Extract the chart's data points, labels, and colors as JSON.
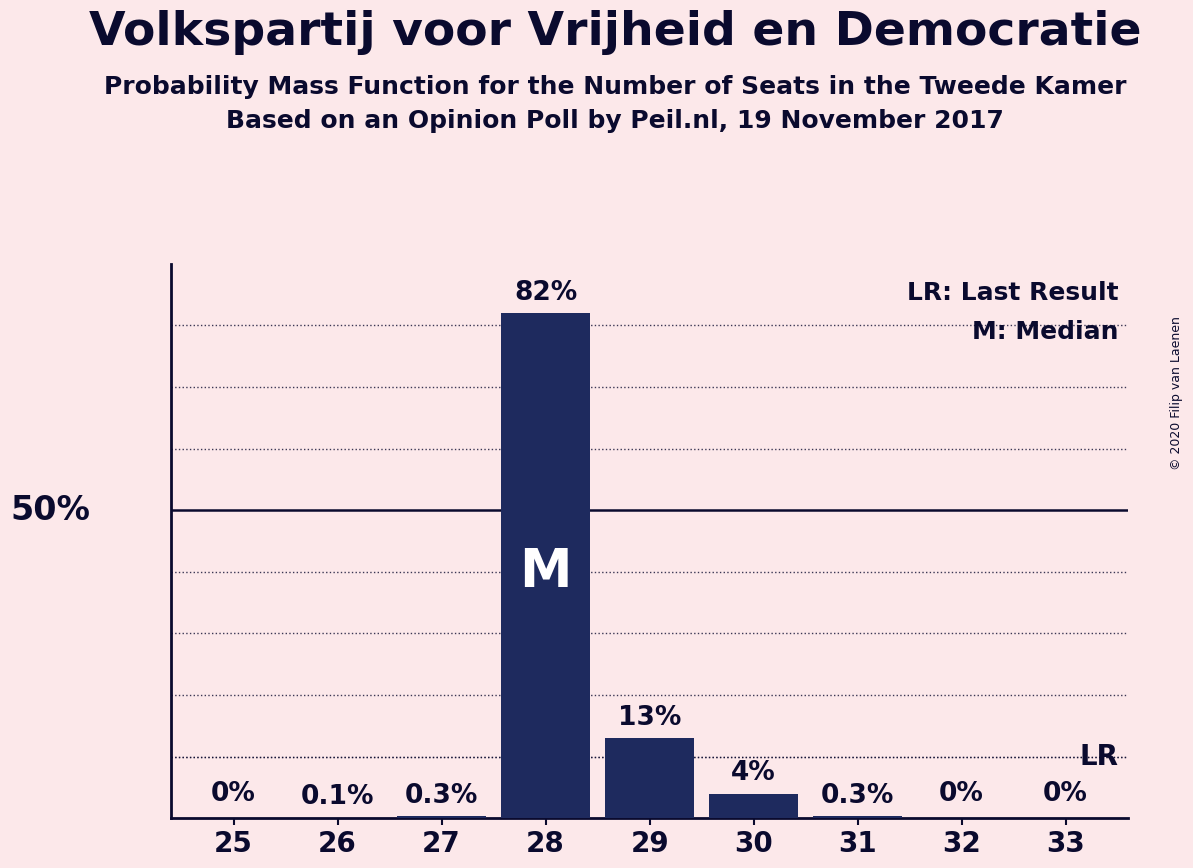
{
  "title": "Volkspartij voor Vrijheid en Democratie",
  "subtitle1": "Probability Mass Function for the Number of Seats in the Tweede Kamer",
  "subtitle2": "Based on an Opinion Poll by Peil.nl, 19 November 2017",
  "copyright": "© 2020 Filip van Laenen",
  "seats": [
    25,
    26,
    27,
    28,
    29,
    30,
    31,
    32,
    33
  ],
  "probabilities": [
    0.0,
    0.1,
    0.3,
    82.0,
    13.0,
    4.0,
    0.3,
    0.0,
    0.0
  ],
  "bar_color": "#1e2a5e",
  "background_color": "#fce8ea",
  "text_color": "#0a0a2e",
  "median_seat": 28,
  "last_result_value": 10.0,
  "ylim": [
    0,
    90
  ],
  "legend_lr": "LR: Last Result",
  "legend_m": "M: Median",
  "fifty_label": "50%",
  "bar_labels": [
    "0%",
    "0.1%",
    "0.3%",
    "82%",
    "13%",
    "4%",
    "0.3%",
    "0%",
    "0%"
  ],
  "grid_dotted": [
    10,
    20,
    30,
    40,
    60,
    70,
    80
  ],
  "title_fontsize": 34,
  "subtitle_fontsize": 18,
  "tick_fontsize": 20,
  "label_fontsize": 19,
  "legend_fontsize": 18,
  "fifty_fontsize": 24,
  "m_fontsize": 38,
  "lr_fontsize": 20
}
